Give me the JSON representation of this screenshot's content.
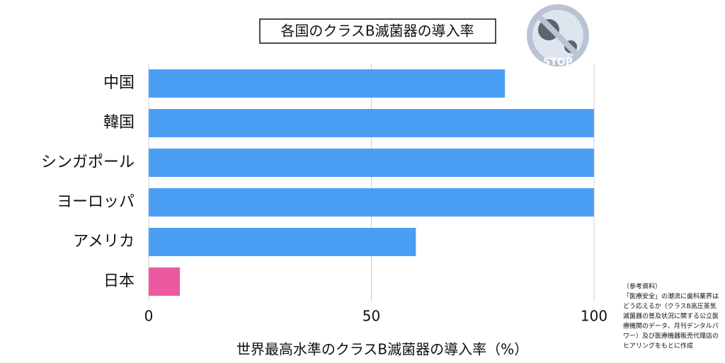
{
  "chart_data": {
    "type": "barh",
    "title": "各国のクラスB滅菌器の導入率",
    "x_label": "世界最高水準のクラスB滅菌器の導入率（%）",
    "categories": [
      "中国",
      "韓国",
      "シンガポール",
      "ヨーロッパ",
      "アメリカ",
      "日本"
    ],
    "values": [
      80,
      100,
      100,
      100,
      60,
      7
    ],
    "colors": [
      "#4a9ff5",
      "#4a9ff5",
      "#4a9ff5",
      "#4a9ff5",
      "#4a9ff5",
      "#eb5aa0"
    ],
    "xlim": [
      0,
      100
    ],
    "xticks": [
      0,
      50,
      100
    ],
    "grid": true,
    "icon_label": "STOP",
    "source_note": [
      "（参考資料）",
      "「医療安全」の潮流に歯科業界は",
      "どう応えるか（クラスB高圧蒸気",
      "滅菌器の普及状況に関する公立医",
      "療機関のデータ、月刊デンタルパ",
      "ワー）及び医療機器販売代理店の",
      "ヒアリングをもとに作成"
    ]
  }
}
